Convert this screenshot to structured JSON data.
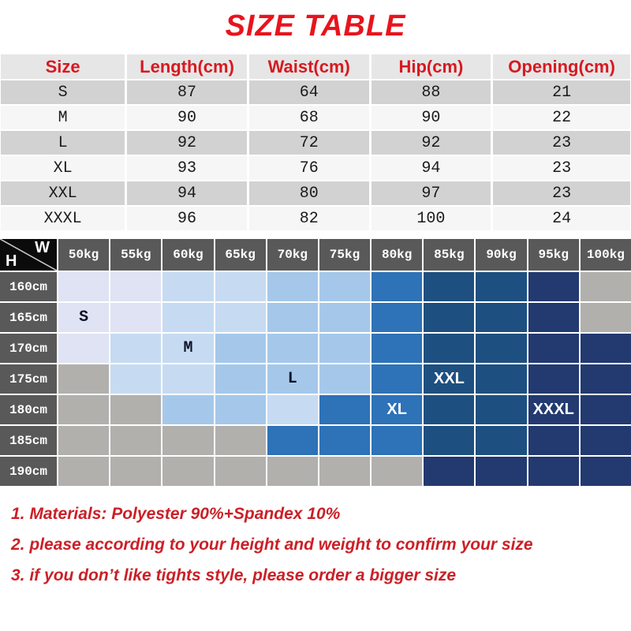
{
  "title": "SIZE TABLE",
  "colors": {
    "title_red": "#e8141c",
    "table_header_red": "#d71920",
    "notes_red": "#cb2027",
    "table_row_gray": "#d2d2d2",
    "table_row_light": "#f6f6f6",
    "table_header_bg": "#e6e6e6",
    "grid_header_bg": "#595959",
    "corner_bg": "#0b0b0b"
  },
  "chart_data": [
    {
      "type": "table",
      "title": "SIZE TABLE",
      "columns": [
        "Size",
        "Length(cm)",
        "Waist(cm)",
        "Hip(cm)",
        "Opening(cm)"
      ],
      "rows": [
        [
          "S",
          "87",
          "64",
          "88",
          "21"
        ],
        [
          "M",
          "90",
          "68",
          "90",
          "22"
        ],
        [
          "L",
          "92",
          "72",
          "92",
          "23"
        ],
        [
          "XL",
          "93",
          "76",
          "94",
          "23"
        ],
        [
          "XXL",
          "94",
          "80",
          "97",
          "23"
        ],
        [
          "XXXL",
          "96",
          "82",
          "100",
          "24"
        ]
      ]
    },
    {
      "type": "heatmap",
      "x_label": "W",
      "y_label": "H",
      "x": [
        "50kg",
        "55kg",
        "60kg",
        "65kg",
        "70kg",
        "75kg",
        "80kg",
        "85kg",
        "90kg",
        "95kg",
        "100kg"
      ],
      "y": [
        "160cm",
        "165cm",
        "170cm",
        "175cm",
        "180cm",
        "185cm",
        "190cm"
      ],
      "palette": {
        "L1": "#dfe3f3",
        "L2": "#c6dbf1",
        "L3": "#a5c8ea",
        "B1": "#2e72b7",
        "B2": "#1d5080",
        "B3": "#233a70",
        "G": "#b2b0ad"
      },
      "cells": [
        [
          "L1",
          "L1",
          "L2",
          "L2",
          "L3",
          "L3",
          "B1",
          "B2",
          "B2",
          "B3",
          "G"
        ],
        [
          "L1",
          "L1",
          "L2",
          "L2",
          "L3",
          "L3",
          "B1",
          "B2",
          "B2",
          "B3",
          "G"
        ],
        [
          "L1",
          "L2",
          "L2",
          "L3",
          "L3",
          "L3",
          "B1",
          "B2",
          "B2",
          "B3",
          "B3"
        ],
        [
          "G",
          "L2",
          "L2",
          "L3",
          "L3",
          "L3",
          "B1",
          "B2",
          "B2",
          "B3",
          "B3"
        ],
        [
          "G",
          "G",
          "L3",
          "L3",
          "L2",
          "B1",
          "B1",
          "B2",
          "B2",
          "B3",
          "B3"
        ],
        [
          "G",
          "G",
          "G",
          "G",
          "B1",
          "B1",
          "B1",
          "B2",
          "B2",
          "B3",
          "B3"
        ],
        [
          "G",
          "G",
          "G",
          "G",
          "G",
          "G",
          "G",
          "B3",
          "B3",
          "B3",
          "B3"
        ]
      ],
      "annotations": [
        {
          "row": 1,
          "col": 0,
          "text": "S",
          "style": "dark"
        },
        {
          "row": 2,
          "col": 2,
          "text": "M",
          "style": "dark"
        },
        {
          "row": 3,
          "col": 4,
          "text": "L",
          "style": "dark"
        },
        {
          "row": 4,
          "col": 6,
          "text": "XL",
          "style": "light"
        },
        {
          "row": 3,
          "col": 7,
          "text": "XXL",
          "style": "light"
        },
        {
          "row": 4,
          "col": 9,
          "text": "XXXL",
          "style": "light"
        }
      ]
    }
  ],
  "notes": [
    "1. Materials: Polyester 90%+Spandex 10%",
    "2. please according to your height and weight to confirm your size",
    "3. if you don’t like tights style, please order a bigger size"
  ]
}
